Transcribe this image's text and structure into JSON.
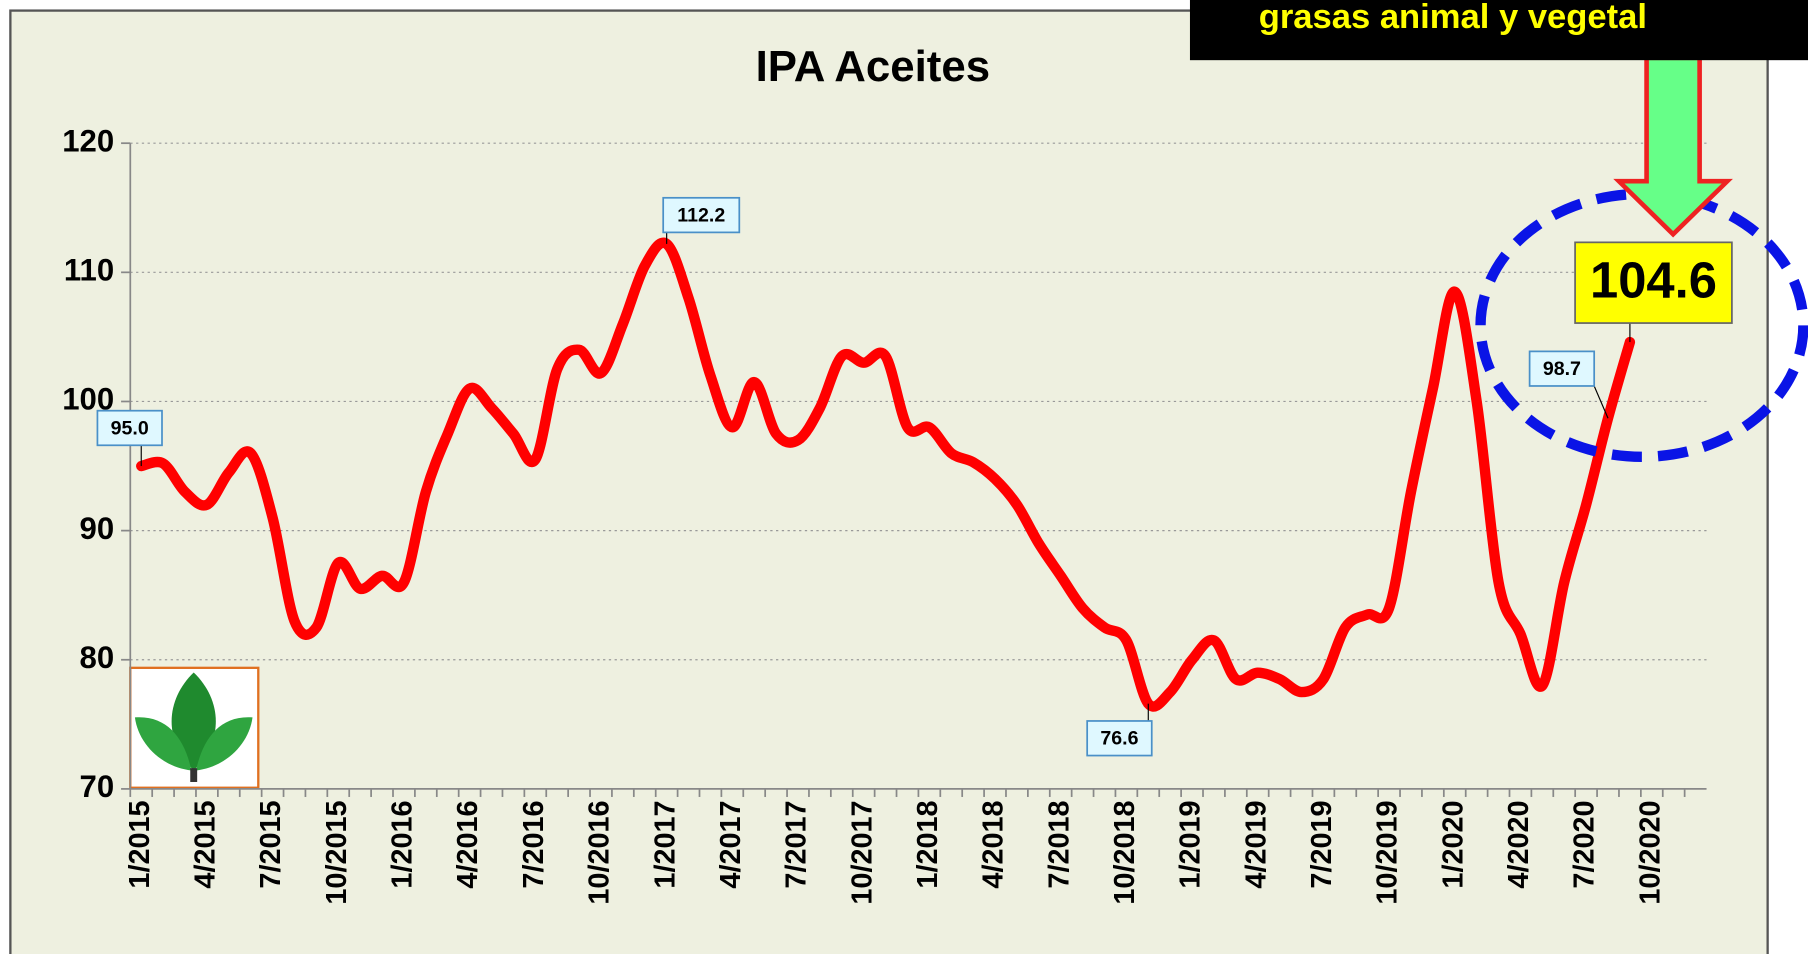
{
  "chart_data": {
    "type": "line",
    "title": "IPA Aceites",
    "banner": "grasas animal y vegetal",
    "categories": [
      "1/2015",
      null,
      null,
      "4/2015",
      null,
      null,
      "7/2015",
      null,
      null,
      "10/2015",
      null,
      null,
      "1/2016",
      null,
      null,
      "4/2016",
      null,
      null,
      "7/2016",
      null,
      null,
      "10/2016",
      null,
      null,
      "1/2017",
      null,
      null,
      "4/2017",
      null,
      null,
      "7/2017",
      null,
      null,
      "10/2017",
      null,
      null,
      "1/2018",
      null,
      null,
      "4/2018",
      null,
      null,
      "7/2018",
      null,
      null,
      "10/2018",
      null,
      null,
      "1/2019",
      null,
      null,
      "4/2019",
      null,
      null,
      "7/2019",
      null,
      null,
      "10/2019",
      null,
      null,
      "1/2020",
      null,
      null,
      "4/2020",
      null,
      null,
      "7/2020",
      null,
      null,
      "10/2020",
      null,
      null
    ],
    "series": [
      {
        "name": "IPA Aceites",
        "color": "#ff0000",
        "values": [
          95.0,
          95.2,
          93,
          92,
          94.5,
          96,
          91,
          83,
          82.5,
          87.5,
          85.5,
          86.5,
          86,
          93,
          97.5,
          101,
          99.5,
          97.5,
          95.5,
          102.5,
          104,
          102.2,
          106,
          110.5,
          112.2,
          108,
          102,
          98,
          101.5,
          97.5,
          97,
          99.5,
          103.5,
          103,
          103.5,
          98,
          98,
          96,
          95.3,
          94,
          92,
          89,
          86.5,
          84,
          82.5,
          81.5,
          76.6,
          77.5,
          80,
          81.5,
          78.5,
          79,
          78.5,
          77.5,
          78.5,
          82.5,
          83.5,
          84,
          93,
          101,
          108.5,
          100,
          86,
          82,
          78,
          86,
          92,
          98.7,
          104.6,
          null,
          null,
          null
        ],
        "value_labels": [
          "95.0",
          null,
          null,
          null,
          null,
          null,
          null,
          null,
          null,
          null,
          null,
          null,
          null,
          null,
          null,
          null,
          null,
          null,
          null,
          null,
          null,
          null,
          null,
          null,
          "112.2",
          null,
          null,
          null,
          null,
          null,
          null,
          null,
          null,
          null,
          null,
          null,
          null,
          null,
          null,
          null,
          null,
          null,
          null,
          null,
          null,
          null,
          "76.6",
          null,
          null,
          null,
          null,
          null,
          null,
          null,
          null,
          null,
          null,
          null,
          null,
          null,
          null,
          null,
          null,
          null,
          null,
          null,
          null,
          "98.7",
          "104.6",
          null,
          null,
          null
        ]
      }
    ],
    "ylim": [
      70,
      120
    ],
    "yticks": [
      70,
      80,
      90,
      100,
      110,
      120
    ],
    "grid": true
  }
}
